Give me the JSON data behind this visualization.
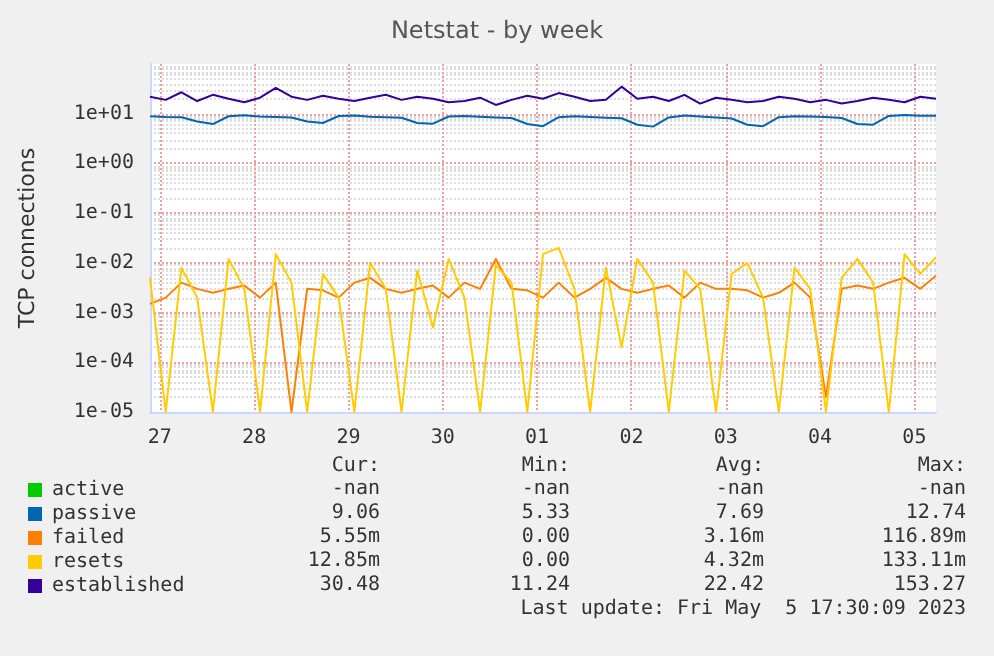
{
  "chart_data": {
    "type": "line",
    "title": "Netstat - by week",
    "ylabel": "TCP connections",
    "x": [
      "2023-04-27T09:30",
      "2023-04-27T13:30",
      "2023-04-27T17:30",
      "2023-04-27T21:30",
      "2023-04-28T01:30",
      "2023-04-28T05:30",
      "2023-04-28T09:30",
      "2023-04-28T13:30",
      "2023-04-28T17:30",
      "2023-04-28T21:30",
      "2023-04-29T01:30",
      "2023-04-29T05:30",
      "2023-04-29T09:30",
      "2023-04-29T13:30",
      "2023-04-29T17:30",
      "2023-04-29T21:30",
      "2023-04-30T01:30",
      "2023-04-30T05:30",
      "2023-04-30T09:30",
      "2023-04-30T13:30",
      "2023-04-30T17:30",
      "2023-04-30T21:30",
      "2023-05-01T01:30",
      "2023-05-01T05:30",
      "2023-05-01T09:30",
      "2023-05-01T13:30",
      "2023-05-01T17:30",
      "2023-05-01T21:30",
      "2023-05-02T01:30",
      "2023-05-02T05:30",
      "2023-05-02T09:30",
      "2023-05-02T13:30",
      "2023-05-02T17:30",
      "2023-05-02T21:30",
      "2023-05-03T01:30",
      "2023-05-03T05:30",
      "2023-05-03T09:30",
      "2023-05-03T13:30",
      "2023-05-03T17:30",
      "2023-05-03T21:30",
      "2023-05-04T01:30",
      "2023-05-04T05:30",
      "2023-05-04T09:30",
      "2023-05-04T13:30",
      "2023-05-04T17:30",
      "2023-05-04T21:30",
      "2023-05-05T01:30",
      "2023-05-05T05:30",
      "2023-05-05T09:30",
      "2023-05-05T13:30",
      "2023-05-05T17:30"
    ],
    "series": [
      {
        "name": "active",
        "color": "#00cc00",
        "values": [
          null,
          null,
          null,
          null,
          null,
          null,
          null,
          null,
          null,
          null,
          null,
          null,
          null,
          null,
          null,
          null,
          null,
          null,
          null,
          null,
          null,
          null,
          null,
          null,
          null,
          null,
          null,
          null,
          null,
          null,
          null,
          null,
          null,
          null,
          null,
          null,
          null,
          null,
          null,
          null,
          null,
          null,
          null,
          null,
          null,
          null,
          null,
          null,
          null,
          null,
          null
        ]
      },
      {
        "name": "passive",
        "color": "#0066b3",
        "values": [
          8.9,
          8.6,
          8.5,
          7.0,
          6.2,
          8.9,
          9.3,
          8.8,
          8.6,
          8.4,
          7.0,
          6.5,
          9.0,
          9.2,
          8.7,
          8.5,
          8.3,
          6.5,
          6.3,
          8.8,
          9.0,
          8.7,
          8.4,
          8.2,
          6.2,
          5.6,
          8.5,
          8.9,
          8.6,
          8.3,
          8.1,
          6.0,
          5.5,
          8.4,
          9.2,
          8.8,
          8.4,
          8.0,
          6.0,
          5.6,
          8.5,
          8.9,
          8.8,
          8.6,
          8.2,
          6.2,
          6.0,
          9.0,
          9.4,
          9.1,
          9.06
        ]
      },
      {
        "name": "failed",
        "color": "#ff8000",
        "values": [
          0.0015,
          0.002,
          0.004,
          0.003,
          0.0025,
          0.003,
          0.0035,
          0.002,
          0.004,
          1e-05,
          0.003,
          0.0028,
          0.002,
          0.004,
          0.005,
          0.003,
          0.0025,
          0.003,
          0.0035,
          0.002,
          0.004,
          0.003,
          0.012,
          0.003,
          0.0028,
          0.002,
          0.004,
          0.002,
          0.003,
          0.005,
          0.003,
          0.0025,
          0.003,
          0.0035,
          0.002,
          0.004,
          0.003,
          0.003,
          0.0028,
          0.002,
          0.0025,
          0.004,
          0.002,
          2e-05,
          0.003,
          0.0035,
          0.003,
          0.004,
          0.005,
          0.003,
          0.0055
        ]
      },
      {
        "name": "resets",
        "color": "#ffcc00",
        "values": [
          0.005,
          1e-05,
          0.008,
          0.002,
          1e-05,
          0.012,
          0.003,
          1e-05,
          0.015,
          0.004,
          1e-05,
          0.006,
          0.002,
          1e-05,
          0.01,
          0.003,
          1e-05,
          0.007,
          0.0005,
          0.012,
          0.002,
          1e-05,
          0.009,
          0.004,
          1e-05,
          0.015,
          0.02,
          0.003,
          1e-05,
          0.008,
          0.0002,
          0.012,
          0.004,
          1e-05,
          0.007,
          0.003,
          1e-05,
          0.006,
          0.01,
          0.002,
          1e-05,
          0.008,
          0.003,
          1e-05,
          0.005,
          0.012,
          0.004,
          1e-05,
          0.015,
          0.006,
          0.013
        ]
      },
      {
        "name": "established",
        "color": "#330099",
        "values": [
          22,
          19,
          27,
          18,
          24,
          20,
          17,
          21,
          33,
          22,
          19,
          23,
          20,
          18,
          21,
          24,
          19,
          22,
          20,
          17,
          18,
          21,
          15,
          19,
          23,
          20,
          26,
          22,
          18,
          19,
          35,
          20,
          22,
          18,
          24,
          16,
          21,
          19,
          17,
          18,
          22,
          20,
          17,
          19,
          16,
          18,
          21,
          19,
          17,
          22,
          20
        ]
      }
    ],
    "log": "y",
    "grid": true,
    "legend": "bottom",
    "xlim": [
      "2023-04-27T09:30",
      "2023-05-05T17:30"
    ],
    "xticks": [
      {
        "value": "2023-04-27T12:00",
        "label": "27"
      },
      {
        "value": "2023-04-28T12:00",
        "label": "28"
      },
      {
        "value": "2023-04-29T12:00",
        "label": "29"
      },
      {
        "value": "2023-04-30T12:00",
        "label": "30"
      },
      {
        "value": "2023-05-01T12:00",
        "label": "01"
      },
      {
        "value": "2023-05-02T12:00",
        "label": "02"
      },
      {
        "value": "2023-05-03T12:00",
        "label": "03"
      },
      {
        "value": "2023-05-04T12:00",
        "label": "04"
      },
      {
        "value": "2023-05-05T12:00",
        "label": "05"
      }
    ],
    "ylim": [
      1e-05,
      100
    ],
    "yticks": [
      {
        "value": 1e-05,
        "label": "1e-05"
      },
      {
        "value": 0.0001,
        "label": "1e-04"
      },
      {
        "value": 0.001,
        "label": "1e-03"
      },
      {
        "value": 0.01,
        "label": "1e-02"
      },
      {
        "value": 0.1,
        "label": "1e-01"
      },
      {
        "value": 1,
        "label": "1e+00"
      },
      {
        "value": 10,
        "label": "1e+01"
      }
    ],
    "annotations": [
      "Cur:",
      "Min:",
      "Avg:",
      "Max:",
      "-nan",
      "-nan",
      "-nan",
      "-nan",
      "9.06",
      "5.33",
      "7.69",
      "12.74",
      "5.55m",
      "0.00",
      "3.16m",
      "116.89m",
      "12.85m",
      "0.00",
      "4.32m",
      "133.11m",
      "30.48",
      "11.24",
      "22.42",
      "153.27",
      "Last update: Fri May  5 17:30:09 2023"
    ]
  }
}
